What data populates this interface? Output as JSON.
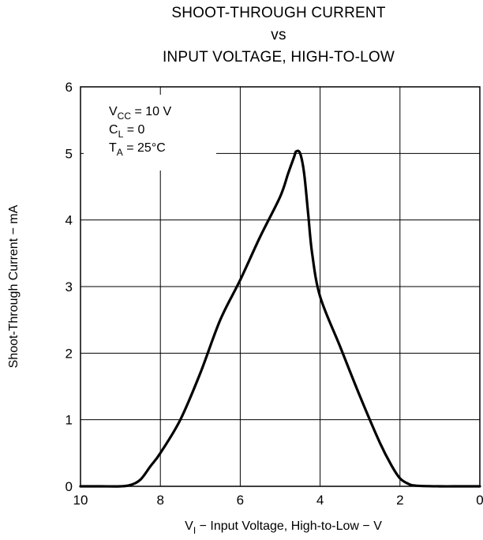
{
  "chart_data": {
    "type": "line",
    "title": [
      "SHOOT-THROUGH CURRENT",
      "vs",
      "INPUT VOLTAGE, HIGH-TO-LOW"
    ],
    "xlabel": {
      "prefix": "V",
      "sub": "I",
      "rest": " − Input Voltage, High-to-Low − V"
    },
    "ylabel": "Shoot-Through Current − mA",
    "xlim": [
      10,
      0
    ],
    "ylim": [
      0,
      6
    ],
    "xticks": [
      "10",
      "8",
      "6",
      "4",
      "2",
      "0"
    ],
    "yticks": [
      "0",
      "1",
      "2",
      "3",
      "4",
      "5",
      "6"
    ],
    "grid": true,
    "conditions": [
      {
        "main": "V",
        "sub": "CC",
        "rest": " = 10 V"
      },
      {
        "main": "C",
        "sub": "L",
        "rest": " = 0"
      },
      {
        "main": "T",
        "sub": "A",
        "rest": " = 25°C"
      }
    ],
    "series": [
      {
        "x": [
          10,
          9.5,
          9.0,
          8.75,
          8.5,
          8.25,
          8.0,
          7.5,
          7.0,
          6.5,
          6.0,
          5.5,
          5.0,
          4.8,
          4.65,
          4.6,
          4.5,
          4.4,
          4.3,
          4.2,
          4.0,
          3.5,
          3.0,
          2.5,
          2.2,
          2.0,
          1.8,
          1.6,
          1.0,
          0.5,
          0
        ],
        "y": [
          0.0,
          0.0,
          0.0,
          0.02,
          0.1,
          0.3,
          0.5,
          1.0,
          1.7,
          2.5,
          3.1,
          3.75,
          4.35,
          4.7,
          4.95,
          5.03,
          5.0,
          4.7,
          4.1,
          3.5,
          2.85,
          2.1,
          1.35,
          0.65,
          0.3,
          0.12,
          0.04,
          0.01,
          0.0,
          0.0,
          0.0
        ]
      }
    ]
  }
}
